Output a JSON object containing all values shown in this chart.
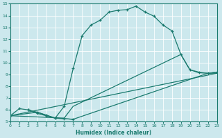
{
  "xlabel": "Humidex (Indice chaleur)",
  "xlim": [
    0,
    23
  ],
  "ylim": [
    5,
    15
  ],
  "xticks": [
    0,
    1,
    2,
    3,
    4,
    5,
    6,
    7,
    8,
    9,
    10,
    11,
    12,
    13,
    14,
    15,
    16,
    17,
    18,
    19,
    20,
    21,
    22,
    23
  ],
  "yticks": [
    5,
    6,
    7,
    8,
    9,
    10,
    11,
    12,
    13,
    14,
    15
  ],
  "bg_color": "#cce8ed",
  "line_color": "#1a7a6e",
  "grid_color": "#b0d8de",
  "line1_x": [
    0,
    1,
    2,
    3,
    4,
    5,
    6,
    7,
    8,
    9,
    10,
    11,
    12,
    13,
    14,
    15,
    16,
    17,
    18,
    19,
    20,
    21,
    22,
    23
  ],
  "line1_y": [
    5.5,
    6.1,
    6.0,
    5.7,
    5.5,
    5.3,
    6.3,
    9.5,
    12.3,
    13.2,
    13.6,
    14.3,
    14.45,
    14.5,
    14.8,
    14.3,
    13.95,
    13.2,
    12.7,
    10.7,
    9.4,
    9.2,
    9.1,
    9.2
  ],
  "line2_x": [
    0,
    6,
    7,
    19,
    20,
    21,
    22,
    23
  ],
  "line2_y": [
    5.5,
    5.3,
    6.3,
    10.7,
    9.4,
    9.15,
    9.1,
    9.2
  ],
  "line3_x": [
    0,
    3,
    4,
    5,
    6,
    7,
    22,
    23
  ],
  "line3_y": [
    5.5,
    5.8,
    5.55,
    5.3,
    5.25,
    5.2,
    9.1,
    9.1
  ],
  "line4_x": [
    0,
    23
  ],
  "line4_y": [
    5.5,
    9.1
  ],
  "line5_x": [
    2,
    3,
    4,
    5,
    6,
    7
  ],
  "line5_y": [
    6.0,
    5.8,
    5.55,
    5.3,
    5.25,
    5.2
  ]
}
